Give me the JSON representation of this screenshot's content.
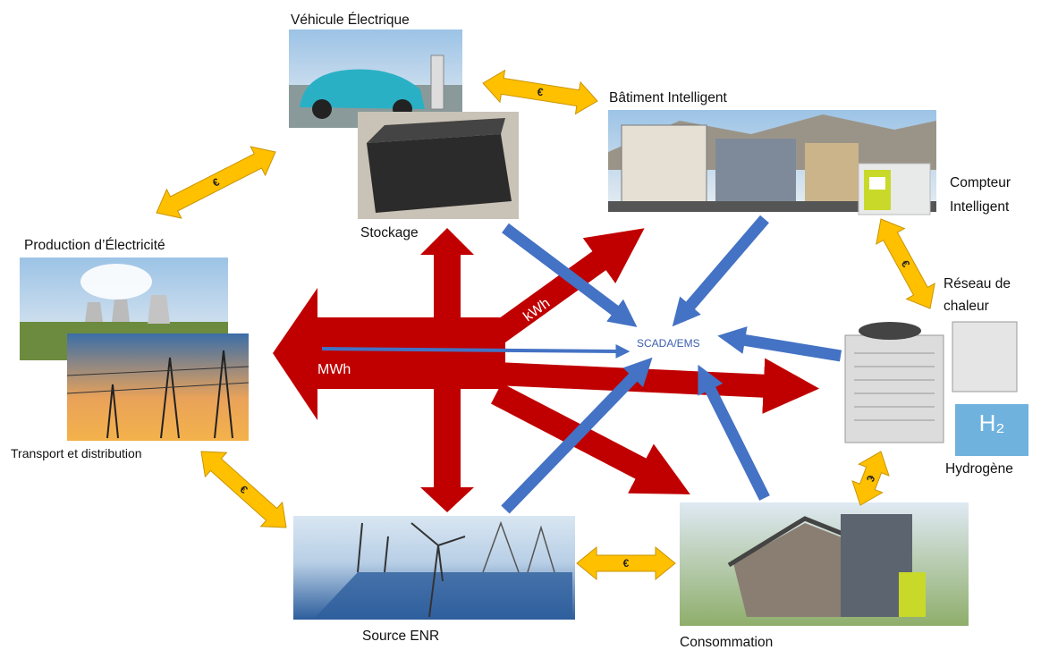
{
  "nodes": {
    "vehicle": "Véhicule Électrique",
    "storage": "Stockage",
    "building": "Bâtiment Intelligent",
    "meter": [
      "Compteur",
      "Intelligent"
    ],
    "production": "Production d’Électricité",
    "transport": "Transport et distribution",
    "heat": [
      "Réseau de",
      "chaleur"
    ],
    "hydrogen": "Hydrogène",
    "h2": "H₂",
    "source": "Source ENR",
    "consumption": "Consommation"
  },
  "center": "SCADA/EMS",
  "flows": {
    "mwh": "MWh",
    "kwh": "kWh"
  },
  "exchanges": [
    "€",
    "€",
    "€",
    "€",
    "€",
    "€"
  ]
}
